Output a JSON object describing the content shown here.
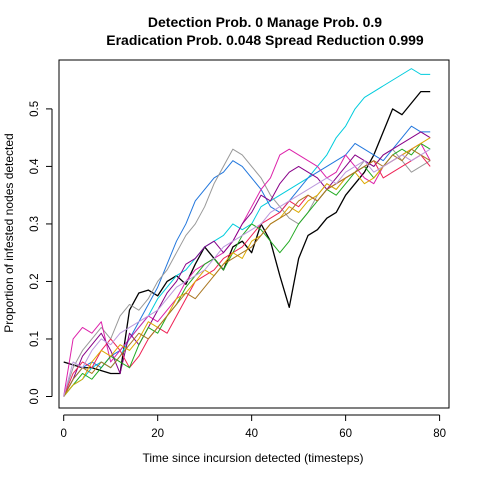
{
  "chart_data": {
    "type": "line",
    "title": "Detection Prob. 0 Manage Prob. 0.9",
    "subtitle": "Eradication Prob. 0.048 Spread Reduction 0.999",
    "xlabel": "Time since incursion detected (timesteps)",
    "ylabel": "Proportion of infested nodes detected",
    "xlim": [
      -1,
      82
    ],
    "ylim": [
      -0.02,
      0.585
    ],
    "xticks": [
      0,
      20,
      40,
      60,
      80
    ],
    "xtick_labels": [
      "0",
      "20",
      "40",
      "60",
      "80"
    ],
    "yticks": [
      0.0,
      0.1,
      0.2,
      0.3,
      0.4,
      0.5
    ],
    "ytick_labels": [
      "0.0",
      "0.1",
      "0.2",
      "0.3",
      "0.4",
      "0.5"
    ],
    "grid": false,
    "legend": "none",
    "x_step": 2,
    "series": [
      {
        "color": "#000000",
        "values": [
          0.06,
          0.055,
          0.05,
          0.05,
          0.045,
          0.04,
          0.04,
          0.15,
          0.18,
          0.185,
          0.175,
          0.2,
          0.21,
          0.195,
          0.23,
          0.26,
          0.24,
          0.22,
          0.26,
          0.27,
          0.25,
          0.3,
          0.27,
          0.21,
          0.155,
          0.24,
          0.28,
          0.29,
          0.31,
          0.32,
          0.35,
          0.37,
          0.39,
          0.42,
          0.46,
          0.5,
          0.49,
          0.51,
          0.53,
          0.53
        ]
      },
      {
        "color": "#00CCDD",
        "values": [
          0.0,
          0.02,
          0.03,
          0.05,
          0.06,
          0.05,
          0.07,
          0.1,
          0.12,
          0.14,
          0.17,
          0.19,
          0.21,
          0.22,
          0.24,
          0.26,
          0.27,
          0.28,
          0.3,
          0.29,
          0.3,
          0.33,
          0.34,
          0.35,
          0.36,
          0.37,
          0.38,
          0.4,
          0.42,
          0.45,
          0.47,
          0.5,
          0.52,
          0.53,
          0.54,
          0.55,
          0.56,
          0.57,
          0.56,
          0.56
        ]
      },
      {
        "color": "#2277DD",
        "values": [
          0.0,
          0.03,
          0.05,
          0.06,
          0.05,
          0.07,
          0.08,
          0.1,
          0.13,
          0.16,
          0.19,
          0.23,
          0.27,
          0.3,
          0.34,
          0.36,
          0.38,
          0.39,
          0.41,
          0.4,
          0.38,
          0.36,
          0.33,
          0.32,
          0.34,
          0.36,
          0.38,
          0.39,
          0.4,
          0.41,
          0.42,
          0.44,
          0.43,
          0.42,
          0.41,
          0.43,
          0.45,
          0.47,
          0.46,
          0.46
        ]
      },
      {
        "color": "#999999",
        "values": [
          0.0,
          0.05,
          0.08,
          0.1,
          0.12,
          0.1,
          0.14,
          0.16,
          0.15,
          0.17,
          0.2,
          0.22,
          0.25,
          0.28,
          0.3,
          0.33,
          0.37,
          0.4,
          0.43,
          0.42,
          0.4,
          0.38,
          0.35,
          0.33,
          0.31,
          0.3,
          0.32,
          0.35,
          0.37,
          0.36,
          0.38,
          0.39,
          0.41,
          0.4,
          0.42,
          0.43,
          0.41,
          0.39,
          0.4,
          0.41
        ]
      },
      {
        "color": "#DD22AA",
        "values": [
          0.0,
          0.1,
          0.12,
          0.11,
          0.13,
          0.06,
          0.08,
          0.1,
          0.12,
          0.14,
          0.13,
          0.15,
          0.17,
          0.2,
          0.22,
          0.23,
          0.24,
          0.25,
          0.27,
          0.3,
          0.33,
          0.36,
          0.38,
          0.42,
          0.43,
          0.42,
          0.41,
          0.4,
          0.38,
          0.39,
          0.42,
          0.4,
          0.38,
          0.37,
          0.4,
          0.41,
          0.42,
          0.43,
          0.44,
          0.41
        ]
      },
      {
        "color": "#880088",
        "values": [
          0.0,
          0.03,
          0.07,
          0.09,
          0.11,
          0.08,
          0.04,
          0.11,
          0.09,
          0.12,
          0.15,
          0.18,
          0.2,
          0.23,
          0.24,
          0.26,
          0.27,
          0.25,
          0.27,
          0.3,
          0.32,
          0.35,
          0.34,
          0.37,
          0.39,
          0.4,
          0.39,
          0.38,
          0.36,
          0.38,
          0.4,
          0.42,
          0.41,
          0.4,
          0.42,
          0.43,
          0.44,
          0.45,
          0.46,
          0.45
        ]
      },
      {
        "color": "#EE2255",
        "values": [
          0.0,
          0.04,
          0.06,
          0.05,
          0.08,
          0.1,
          0.08,
          0.05,
          0.07,
          0.1,
          0.12,
          0.11,
          0.14,
          0.17,
          0.2,
          0.21,
          0.22,
          0.24,
          0.25,
          0.26,
          0.28,
          0.3,
          0.31,
          0.32,
          0.34,
          0.33,
          0.35,
          0.34,
          0.36,
          0.37,
          0.38,
          0.39,
          0.4,
          0.41,
          0.38,
          0.39,
          0.4,
          0.41,
          0.42,
          0.4
        ]
      },
      {
        "color": "#22AA22",
        "values": [
          0.0,
          0.02,
          0.04,
          0.03,
          0.05,
          0.07,
          0.06,
          0.05,
          0.09,
          0.12,
          0.11,
          0.14,
          0.16,
          0.19,
          0.21,
          0.23,
          0.24,
          0.22,
          0.25,
          0.28,
          0.3,
          0.29,
          0.27,
          0.25,
          0.27,
          0.3,
          0.32,
          0.34,
          0.36,
          0.35,
          0.37,
          0.39,
          0.4,
          0.38,
          0.4,
          0.42,
          0.43,
          0.42,
          0.44,
          0.43
        ]
      },
      {
        "color": "#DDAA00",
        "values": [
          0.0,
          0.02,
          0.03,
          0.06,
          0.08,
          0.07,
          0.09,
          0.08,
          0.1,
          0.13,
          0.12,
          0.14,
          0.17,
          0.18,
          0.2,
          0.22,
          0.21,
          0.23,
          0.25,
          0.24,
          0.27,
          0.28,
          0.3,
          0.31,
          0.33,
          0.32,
          0.34,
          0.35,
          0.37,
          0.36,
          0.38,
          0.39,
          0.37,
          0.38,
          0.4,
          0.41,
          0.42,
          0.43,
          0.44,
          0.45
        ]
      },
      {
        "color": "#AA7722",
        "values": [
          0.0,
          0.03,
          0.05,
          0.04,
          0.06,
          0.05,
          0.07,
          0.09,
          0.11,
          0.1,
          0.12,
          0.14,
          0.16,
          0.18,
          0.17,
          0.19,
          0.21,
          0.23,
          0.24,
          0.25,
          0.26,
          0.28,
          0.3,
          0.31,
          0.32,
          0.34,
          0.35,
          0.34,
          0.36,
          0.37,
          0.38,
          0.39,
          0.4,
          0.41,
          0.4,
          0.42,
          0.41,
          0.43,
          0.42,
          0.41
        ]
      },
      {
        "color": "#BB99DD",
        "values": [
          0.0,
          0.06,
          0.05,
          0.08,
          0.1,
          0.09,
          0.11,
          0.12,
          0.13,
          0.14,
          0.15,
          0.17,
          0.19,
          0.2,
          0.21,
          0.22,
          0.24,
          0.26,
          0.27,
          0.28,
          0.29,
          0.3,
          0.32,
          0.33,
          0.34,
          0.35,
          0.36,
          0.37,
          0.38,
          0.37,
          0.39,
          0.4,
          0.41,
          0.39,
          0.4,
          0.41,
          0.42,
          0.41,
          0.42,
          0.43
        ]
      }
    ]
  }
}
